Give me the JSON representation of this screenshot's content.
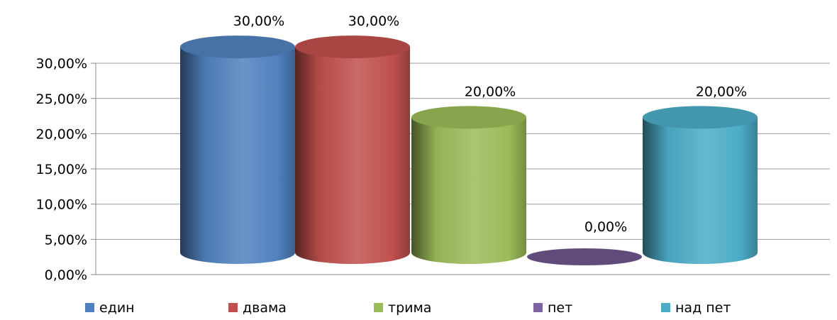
{
  "chart_data": {
    "type": "bar",
    "style": "3d-cylinder",
    "title": "",
    "xlabel": "",
    "ylabel": "",
    "categories": [
      "един",
      "двама",
      "трима",
      "пет",
      "над пет"
    ],
    "values": [
      30,
      30,
      20,
      0,
      20
    ],
    "value_labels": [
      "30,00%",
      "30,00%",
      "20,00%",
      "0,00%",
      "20,00%"
    ],
    "colors": [
      "#4F81BD",
      "#C0504D",
      "#9BBB59",
      "#8064A2",
      "#4BACC6"
    ],
    "ylim": [
      0,
      30
    ],
    "y_ticks": [
      0,
      5,
      10,
      15,
      20,
      25,
      30
    ],
    "y_tick_labels": [
      "0,00%",
      "5,00%",
      "10,00%",
      "15,00%",
      "20,00%",
      "25,00%",
      "30,00%"
    ],
    "grid": "horizontal",
    "legend": {
      "position": "bottom",
      "entries": [
        "един",
        "двама",
        "трима",
        "пет",
        "над пет"
      ]
    }
  }
}
